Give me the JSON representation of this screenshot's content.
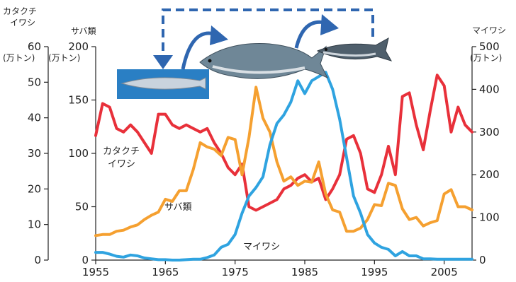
{
  "chart_data": {
    "type": "line",
    "axes": {
      "left_outer": {
        "title_lines": [
          "カタクチ",
          "イワシ"
        ],
        "unit": "(万トン)",
        "ylim": [
          0,
          60
        ],
        "ticks": [
          0,
          10,
          20,
          30,
          40,
          50,
          60
        ],
        "tick_labels": [
          "0",
          "10",
          "20",
          "30",
          "40",
          "50",
          "60"
        ]
      },
      "left_inner": {
        "title": "サバ類",
        "unit": "(万トン)",
        "ylim": [
          0,
          200
        ],
        "ticks": [
          0,
          50,
          100,
          150,
          200
        ],
        "tick_labels": [
          "0",
          "50",
          "100",
          "150",
          "200"
        ]
      },
      "right": {
        "title": "マイワシ",
        "unit": "(万トン)",
        "ylim": [
          0,
          500
        ],
        "ticks": [
          0,
          100,
          200,
          300,
          400,
          500
        ],
        "tick_labels": [
          "0",
          "100",
          "200",
          "300",
          "400",
          "500"
        ]
      },
      "x": {
        "xlim": [
          1955,
          2009
        ],
        "ticks": [
          1955,
          1965,
          1975,
          1985,
          1995,
          2005
        ],
        "tick_labels": [
          "1955",
          "1965",
          "1975",
          "1985",
          "1995",
          "2005"
        ]
      }
    },
    "series": [
      {
        "name": "カタクチ\nイワシ",
        "axis": "left_outer",
        "color": "#e8303a",
        "x": [
          1955,
          1956,
          1957,
          1958,
          1959,
          1960,
          1961,
          1962,
          1963,
          1964,
          1965,
          1966,
          1967,
          1968,
          1969,
          1970,
          1971,
          1972,
          1973,
          1974,
          1975,
          1976,
          1977,
          1978,
          1979,
          1980,
          1981,
          1982,
          1983,
          1984,
          1985,
          1986,
          1987,
          1988,
          1989,
          1990,
          1991,
          1992,
          1993,
          1994,
          1995,
          1996,
          1997,
          1998,
          1999,
          2000,
          2001,
          2002,
          2003,
          2004,
          2005,
          2006,
          2007,
          2008,
          2009
        ],
        "y": [
          35,
          44,
          43,
          37,
          36,
          38,
          36,
          33,
          30,
          41,
          41,
          38,
          37,
          38,
          37,
          36,
          37,
          33,
          30,
          26,
          24,
          27,
          15,
          14,
          15,
          16,
          17,
          20,
          21,
          23,
          24,
          22,
          23,
          17,
          20,
          24,
          34,
          35,
          30,
          20,
          19,
          24,
          32,
          24,
          46,
          47,
          38,
          31,
          42,
          52,
          49,
          36,
          43,
          38,
          36
        ]
      },
      {
        "name": "サバ類",
        "axis": "left_inner",
        "color": "#f5a030",
        "x": [
          1955,
          1956,
          1957,
          1958,
          1959,
          1960,
          1961,
          1962,
          1963,
          1964,
          1965,
          1966,
          1967,
          1968,
          1969,
          1970,
          1971,
          1972,
          1973,
          1974,
          1975,
          1976,
          1977,
          1978,
          1979,
          1980,
          1981,
          1982,
          1983,
          1984,
          1985,
          1986,
          1987,
          1988,
          1989,
          1990,
          1991,
          1992,
          1993,
          1994,
          1995,
          1996,
          1997,
          1998,
          1999,
          2000,
          2001,
          2002,
          2003,
          2004,
          2005,
          2006,
          2007,
          2008,
          2009
        ],
        "y": [
          23,
          24,
          24,
          27,
          28,
          31,
          33,
          38,
          42,
          45,
          57,
          55,
          65,
          65,
          85,
          110,
          106,
          104,
          98,
          115,
          113,
          80,
          115,
          162,
          133,
          120,
          92,
          74,
          78,
          70,
          74,
          73,
          92,
          62,
          47,
          45,
          27,
          27,
          30,
          38,
          52,
          51,
          72,
          70,
          48,
          38,
          40,
          32,
          35,
          37,
          62,
          66,
          50,
          50,
          47
        ]
      },
      {
        "name": "マイワシ",
        "axis": "right",
        "color": "#2fa3e0",
        "x": [
          1955,
          1956,
          1957,
          1958,
          1959,
          1960,
          1961,
          1962,
          1963,
          1964,
          1965,
          1966,
          1967,
          1968,
          1969,
          1970,
          1971,
          1972,
          1973,
          1974,
          1975,
          1976,
          1977,
          1978,
          1979,
          1980,
          1981,
          1982,
          1983,
          1984,
          1985,
          1986,
          1987,
          1988,
          1989,
          1990,
          1991,
          1992,
          1993,
          1994,
          1995,
          1996,
          1997,
          1998,
          1999,
          2000,
          2001,
          2002,
          2003,
          2004,
          2005,
          2006,
          2007,
          2008,
          2009
        ],
        "y": [
          18,
          18,
          14,
          9,
          7,
          12,
          10,
          5,
          3,
          1,
          1,
          0,
          0,
          1,
          2,
          2,
          6,
          12,
          30,
          37,
          60,
          110,
          150,
          170,
          195,
          270,
          320,
          340,
          370,
          420,
          390,
          420,
          430,
          440,
          400,
          330,
          240,
          150,
          110,
          60,
          40,
          30,
          25,
          10,
          20,
          10,
          10,
          3,
          3,
          2,
          2,
          2,
          2,
          2,
          2
        ]
      }
    ],
    "annotations": [
      {
        "text": "マイワシ",
        "series": "マイワシ"
      }
    ]
  }
}
